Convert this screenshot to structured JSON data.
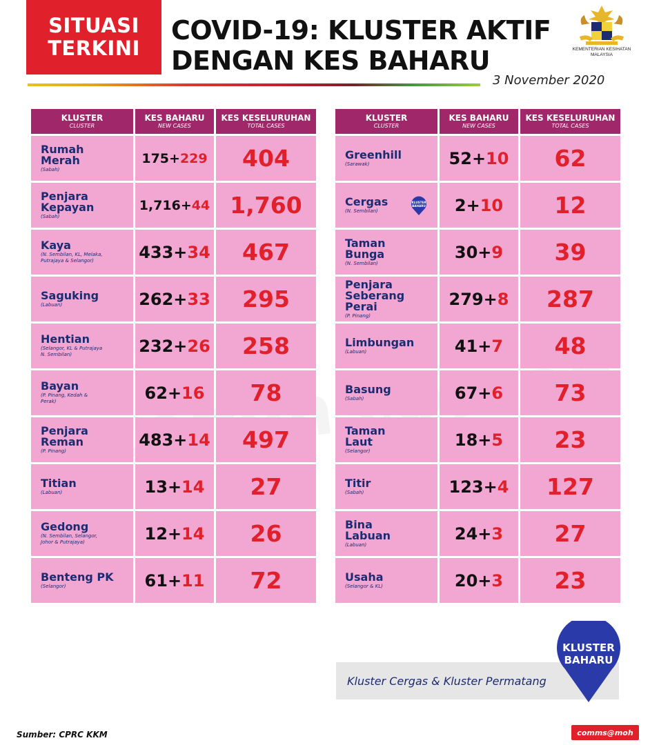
{
  "badge": {
    "line1": "SITUASI",
    "line2": "TERKINI"
  },
  "title": {
    "line1": "COVID-19: KLUSTER AKTIF",
    "line2": "DENGAN KES BAHARU"
  },
  "ministry": {
    "name": "KEMENTERIAN KESIHATAN\nMALAYSIA"
  },
  "date": "3 November 2020",
  "headers": {
    "cluster": "KLUSTER",
    "cluster_sub": "CLUSTER",
    "new": "KES BAHARU",
    "new_sub": "NEW CASES",
    "total": "KES KESELURUHAN",
    "total_sub": "TOTAL CASES"
  },
  "left_rows": [
    {
      "name": "Rumah\nMerah",
      "state": "(Sabah)",
      "prev": "175",
      "plus": "+",
      "new": "229",
      "total": "404"
    },
    {
      "name": "Penjara\nKepayan",
      "state": "(Sabah)",
      "prev": "1,716",
      "plus": "+",
      "new": "44",
      "total": "1,760"
    },
    {
      "name": "Kaya",
      "state": "(N. Sembilan, KL, Melaka,\nPutrajaya & Selangor)",
      "prev": "433",
      "plus": "+",
      "new": "34",
      "total": "467"
    },
    {
      "name": "Saguking",
      "state": "(Labuan)",
      "prev": "262",
      "plus": "+",
      "new": "33",
      "total": "295"
    },
    {
      "name": "Hentian",
      "state": "(Selangor, KL & Putrajaya\nN. Sembilan)",
      "prev": "232",
      "plus": "+",
      "new": "26",
      "total": "258"
    },
    {
      "name": "Bayan",
      "state": "(P. Pinang, Kedah &\nPerak)",
      "prev": "62",
      "plus": "+",
      "new": "16",
      "total": "78"
    },
    {
      "name": "Penjara\nReman",
      "state": "(P. Pinang)",
      "prev": "483",
      "plus": "+",
      "new": "14",
      "total": "497"
    },
    {
      "name": "Titian",
      "state": "(Labuan)",
      "prev": "13",
      "plus": "+",
      "new": "14",
      "total": "27"
    },
    {
      "name": "Gedong",
      "state": "(N. Sembilan, Selangor,\nJohor & Putrajaya)",
      "prev": "12",
      "plus": "+",
      "new": "14",
      "total": "26"
    },
    {
      "name": "Benteng PK",
      "state": "(Selangor)",
      "prev": "61",
      "plus": "+",
      "new": "11",
      "total": "72"
    }
  ],
  "right_rows": [
    {
      "name": "Greenhill",
      "state": "(Sarawak)",
      "prev": "52",
      "plus": "+",
      "new": "10",
      "total": "62"
    },
    {
      "name": "Cergas",
      "state": "(N. Sembilan)",
      "prev": "2",
      "plus": "+",
      "new": "10",
      "total": "12"
    },
    {
      "name": "Taman\nBunga",
      "state": "(N. Sembilan)",
      "prev": "30",
      "plus": "+",
      "new": "9",
      "total": "39"
    },
    {
      "name": "Penjara\nSeberang Perai",
      "state": "(P. Pinang)",
      "prev": "279",
      "plus": "+",
      "new": "8",
      "total": "287"
    },
    {
      "name": "Limbungan",
      "state": "(Labuan)",
      "prev": "41",
      "plus": "+",
      "new": "7",
      "total": "48"
    },
    {
      "name": "Basung",
      "state": "(Sabah)",
      "prev": "67",
      "plus": "+",
      "new": "6",
      "total": "73"
    },
    {
      "name": "Taman\nLaut",
      "state": "(Selangor)",
      "prev": "18",
      "plus": "+",
      "new": "5",
      "total": "23"
    },
    {
      "name": "Titir",
      "state": "(Sabah)",
      "prev": "123",
      "plus": "+",
      "new": "4",
      "total": "127"
    },
    {
      "name": "Bina\nLabuan",
      "state": "(Labuan)",
      "prev": "24",
      "plus": "+",
      "new": "3",
      "total": "27"
    },
    {
      "name": "Usaha",
      "state": "(Selangor & KL)",
      "prev": "20",
      "plus": "+",
      "new": "3",
      "total": "23"
    }
  ],
  "pin_small": {
    "line1": "KLUSTER",
    "line2": "BAHARU"
  },
  "note": "Kluster Cergas & Kluster Permatang",
  "pin_big": {
    "line1": "KLUSTER",
    "line2": "BAHARU"
  },
  "watermark": "comms@moh",
  "source": "Sumber: CPRC KKM",
  "comms_tag": "comms@moh",
  "colors": {
    "red": "#e0202a",
    "magenta": "#a0286a",
    "pink": "#f2a6d2",
    "navy": "#1d2b70"
  }
}
